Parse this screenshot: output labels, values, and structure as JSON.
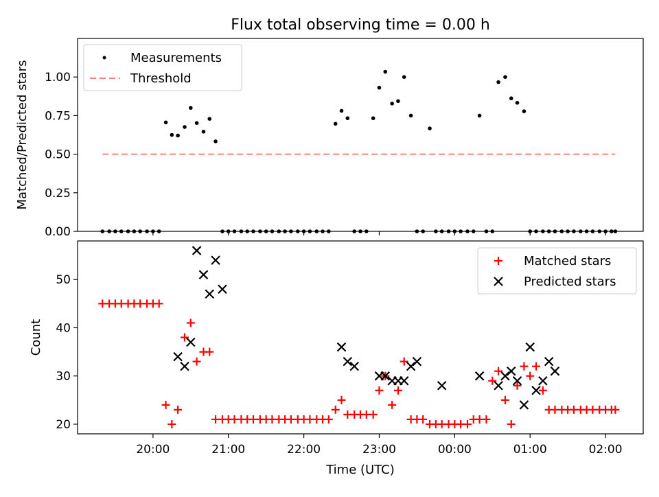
{
  "title": "Flux total observing time = 0.00 h",
  "chart_data": [
    {
      "type": "scatter",
      "ylabel": "Matched/Predicted stars",
      "ylim": [
        0,
        1.25
      ],
      "yticks": [
        "0.00",
        "0.25",
        "0.50",
        "0.75",
        "1.00"
      ],
      "ytick_values": [
        0,
        0.25,
        0.5,
        0.75,
        1.0
      ],
      "xlim_hours": [
        19.0,
        26.5
      ],
      "legend": {
        "position": "top-left",
        "entries": [
          "Measurements",
          "Threshold"
        ]
      },
      "threshold": {
        "name": "Threshold",
        "value": 0.5,
        "x_range_hours": [
          19.33,
          26.13
        ],
        "color": "#ff7f7f"
      },
      "series": [
        {
          "name": "Measurements",
          "marker": "dot",
          "color": "#000000",
          "x_hours": [
            19.33,
            19.42,
            19.5,
            19.58,
            19.67,
            19.75,
            19.83,
            19.92,
            20.0,
            20.08,
            20.17,
            20.25,
            20.33,
            20.42,
            20.5,
            20.58,
            20.67,
            20.75,
            20.83,
            20.92,
            21.0,
            21.08,
            21.17,
            21.25,
            21.33,
            21.42,
            21.5,
            21.58,
            21.67,
            21.75,
            21.83,
            21.92,
            22.0,
            22.08,
            22.17,
            22.25,
            22.33,
            22.42,
            22.5,
            22.58,
            22.67,
            22.75,
            22.83,
            22.92,
            23.0,
            23.08,
            23.17,
            23.25,
            23.33,
            23.42,
            23.5,
            23.58,
            23.67,
            23.75,
            23.83,
            23.92,
            24.0,
            24.08,
            24.17,
            24.25,
            24.33,
            24.42,
            24.5,
            24.58,
            24.67,
            24.75,
            24.83,
            24.92,
            25.0,
            25.08,
            25.17,
            25.25,
            25.33,
            25.42,
            25.5,
            25.58,
            25.67,
            25.75,
            25.83,
            25.92,
            26.0,
            26.08,
            26.13
          ],
          "y": [
            0,
            0,
            0,
            0,
            0,
            0,
            0,
            0,
            0,
            0,
            0.706,
            0.625,
            0.621,
            0.676,
            0.8,
            0.702,
            0.646,
            0.729,
            0.583,
            0,
            0,
            0,
            0,
            0,
            0,
            0,
            0,
            0,
            0,
            0,
            0,
            0,
            0,
            0,
            0,
            0,
            0,
            0.697,
            0.781,
            0.733,
            0,
            0,
            0,
            0.733,
            0.931,
            1.034,
            0.828,
            0.844,
            1.0,
            0.75,
            0,
            0,
            0.667,
            0,
            0,
            0,
            0,
            0,
            0,
            0,
            0.75,
            0,
            0,
            0.967,
            1.0,
            0.862,
            0.833,
            0.778,
            0,
            0,
            0,
            0,
            0,
            0,
            0,
            0,
            0,
            0,
            0,
            0,
            0,
            0,
            0
          ]
        }
      ]
    },
    {
      "type": "scatter",
      "xlabel": "Time (UTC)",
      "ylabel": "Count",
      "ylim": [
        18,
        58
      ],
      "yticks": [
        "20",
        "30",
        "40",
        "50"
      ],
      "ytick_values": [
        20,
        30,
        40,
        50
      ],
      "xlim_hours": [
        19.0,
        26.5
      ],
      "xticks": [
        "20:00",
        "21:00",
        "22:00",
        "23:00",
        "00:00",
        "01:00",
        "02:00"
      ],
      "xtick_hours": [
        20,
        21,
        22,
        23,
        24,
        25,
        26
      ],
      "legend": {
        "position": "top-right",
        "entries": [
          "Matched stars",
          "Predicted stars"
        ]
      },
      "series": [
        {
          "name": "Matched stars",
          "marker": "plus",
          "color": "#ff0000",
          "x_hours": [
            19.33,
            19.42,
            19.5,
            19.58,
            19.67,
            19.75,
            19.83,
            19.92,
            20.0,
            20.08,
            20.17,
            20.25,
            20.33,
            20.42,
            20.5,
            20.58,
            20.67,
            20.75,
            20.83,
            20.92,
            21.0,
            21.08,
            21.17,
            21.25,
            21.33,
            21.42,
            21.5,
            21.58,
            21.67,
            21.75,
            21.83,
            21.92,
            22.0,
            22.08,
            22.17,
            22.25,
            22.33,
            22.42,
            22.5,
            22.58,
            22.67,
            22.75,
            22.83,
            22.92,
            23.0,
            23.08,
            23.17,
            23.25,
            23.33,
            23.42,
            23.5,
            23.58,
            23.67,
            23.75,
            23.83,
            23.92,
            24.0,
            24.08,
            24.17,
            24.25,
            24.33,
            24.42,
            24.5,
            24.58,
            24.67,
            24.75,
            24.83,
            24.92,
            25.0,
            25.08,
            25.17,
            25.25,
            25.33,
            25.42,
            25.5,
            25.58,
            25.67,
            25.75,
            25.83,
            25.92,
            26.0,
            26.08,
            26.13
          ],
          "y": [
            45,
            45,
            45,
            45,
            45,
            45,
            45,
            45,
            45,
            45,
            24,
            20,
            23,
            38,
            41,
            33,
            35,
            35,
            21,
            21,
            21,
            21,
            21,
            21,
            21,
            21,
            21,
            21,
            21,
            21,
            21,
            21,
            21,
            21,
            21,
            21,
            21,
            23,
            25,
            22,
            22,
            22,
            22,
            22,
            27,
            30,
            24,
            27,
            33,
            21,
            21,
            21,
            20,
            20,
            20,
            20,
            20,
            20,
            20,
            21,
            21,
            21,
            29,
            31,
            25,
            20,
            28,
            32,
            30,
            32,
            27,
            23,
            23,
            23,
            23,
            23,
            23,
            23,
            23,
            23,
            23,
            23,
            23
          ]
        },
        {
          "name": "Predicted stars",
          "marker": "x",
          "color": "#000000",
          "x_hours": [
            20.33,
            20.42,
            20.5,
            20.58,
            20.67,
            20.75,
            20.83,
            20.92,
            22.5,
            22.58,
            22.67,
            23.0,
            23.08,
            23.17,
            23.25,
            23.33,
            23.42,
            23.5,
            23.83,
            24.33,
            24.58,
            24.67,
            24.75,
            24.83,
            24.92,
            25.0,
            25.08,
            25.17,
            25.25,
            25.33
          ],
          "y": [
            34,
            32,
            37,
            56,
            51,
            47,
            54,
            48,
            36,
            33,
            32,
            30,
            30,
            29,
            29,
            29,
            32,
            33,
            28,
            30,
            28,
            30,
            31,
            29,
            24,
            36,
            27,
            29,
            33,
            31
          ]
        }
      ]
    }
  ]
}
